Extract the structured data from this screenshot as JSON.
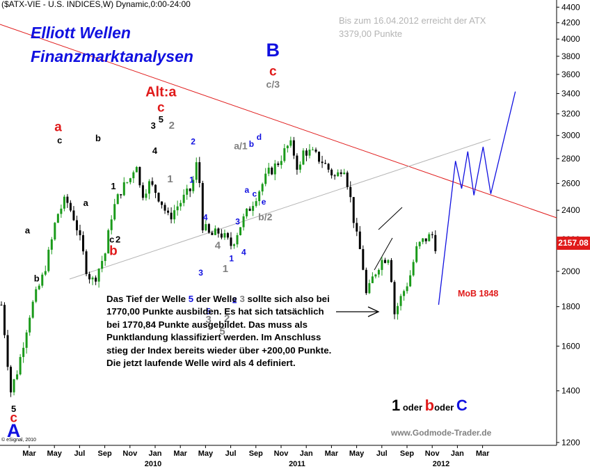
{
  "header": "($ATX-VIE - U.S. INDICES,W) Dynamic,0:00-24:00",
  "brand": {
    "line1": "Elliott Wellen",
    "line2": "Finanzmarktanalysen"
  },
  "note": {
    "line1": "Bis zum 16.04.2012 erreicht der ATX",
    "line2": "3379,00 Punkte"
  },
  "commentary": {
    "p1": "Das Tief der Welle ",
    "w5": "5",
    "p2": " der Welle ",
    "w3": "3",
    "p3": " sollte sich also bei 1770,00 Punkte ausbilden. Es hat sich tatsächlich bei 1770,84 Punkte ausgebildet. Das muss als Punktlandung klassifiziert werden. Im Anschluss stieg der Index bereits wieder über +200,00 Punkte. Die jetzt laufende Welle wird als 4 definiert."
  },
  "mob": "MoB 1848",
  "website": "www.Godmode-Trader.de",
  "credit": "© eSignal, 2010",
  "oder_line": {
    "n1": "1",
    "w1": " oder ",
    "n2": "b",
    "w2": "oder ",
    "n3": "C"
  },
  "colors": {
    "candle": "#1a9a1a",
    "red": "#e01a1a",
    "blue": "#1010e0",
    "grey": "#808080",
    "black": "#000000"
  },
  "chart_data": {
    "type": "candlestick",
    "title": "($ATX-VIE - U.S. INDICES,W) Dynamic,0:00-24:00",
    "last_price": "2157.08",
    "y_ticks": [
      "1200",
      "1400",
      "1600",
      "1800",
      "2000",
      "2200",
      "2400",
      "2600",
      "2800",
      "3000",
      "3200",
      "3400",
      "3600",
      "3800",
      "4000",
      "4200",
      "4400"
    ],
    "y_scale": "log",
    "ylim": [
      1180,
      4450
    ],
    "x_ticks": [
      "Mar",
      "May",
      "Jul",
      "Sep",
      "Nov",
      "Jan",
      "Mar",
      "May",
      "Jul",
      "Sep",
      "Nov",
      "Jan",
      "Mar",
      "May",
      "Jul",
      "Sep",
      "Nov",
      "Jan",
      "Mar"
    ],
    "x_year_labels": [
      "2010",
      "2011",
      "2012"
    ],
    "weekly_close_path": [
      {
        "t": 0,
        "c": 1810
      },
      {
        "t": 0.06,
        "c": 1395
      },
      {
        "t": 0.11,
        "c": 1500
      },
      {
        "t": 0.19,
        "c": 1780
      },
      {
        "t": 0.27,
        "c": 1970
      },
      {
        "t": 0.32,
        "c": 2150
      },
      {
        "t": 0.36,
        "c": 2360
      },
      {
        "t": 0.42,
        "c": 2480
      },
      {
        "t": 0.48,
        "c": 2330
      },
      {
        "t": 0.56,
        "c": 1990
      },
      {
        "t": 0.6,
        "c": 1940
      },
      {
        "t": 0.68,
        "c": 2120
      },
      {
        "t": 0.72,
        "c": 2380
      },
      {
        "t": 0.78,
        "c": 2550
      },
      {
        "t": 0.84,
        "c": 2640
      },
      {
        "t": 0.88,
        "c": 2780
      },
      {
        "t": 0.91,
        "c": 2500
      },
      {
        "t": 0.96,
        "c": 2600
      },
      {
        "t": 1.0,
        "c": 2550
      },
      {
        "t": 1.04,
        "c": 2470
      },
      {
        "t": 1.09,
        "c": 2340
      },
      {
        "t": 1.14,
        "c": 2420
      },
      {
        "t": 1.19,
        "c": 2490
      },
      {
        "t": 1.24,
        "c": 2560
      },
      {
        "t": 1.28,
        "c": 2800
      },
      {
        "t": 1.31,
        "c": 2300
      },
      {
        "t": 1.36,
        "c": 2220
      },
      {
        "t": 1.42,
        "c": 2250
      },
      {
        "t": 1.5,
        "c": 2160
      },
      {
        "t": 1.56,
        "c": 2300
      },
      {
        "t": 1.62,
        "c": 2420
      },
      {
        "t": 1.68,
        "c": 2550
      },
      {
        "t": 1.74,
        "c": 2680
      },
      {
        "t": 1.8,
        "c": 2760
      },
      {
        "t": 1.85,
        "c": 2870
      },
      {
        "t": 1.88,
        "c": 2930
      },
      {
        "t": 1.91,
        "c": 2830
      },
      {
        "t": 1.94,
        "c": 2680
      },
      {
        "t": 1.97,
        "c": 2870
      },
      {
        "t": 2.03,
        "c": 2840
      },
      {
        "t": 2.09,
        "c": 2780
      },
      {
        "t": 2.14,
        "c": 2700
      },
      {
        "t": 2.18,
        "c": 2640
      },
      {
        "t": 2.23,
        "c": 2760
      },
      {
        "t": 2.27,
        "c": 2520
      },
      {
        "t": 2.31,
        "c": 2240
      },
      {
        "t": 2.35,
        "c": 2080
      },
      {
        "t": 2.38,
        "c": 1850
      },
      {
        "t": 2.42,
        "c": 1960
      },
      {
        "t": 2.47,
        "c": 2060
      },
      {
        "t": 2.53,
        "c": 2100
      },
      {
        "t": 2.56,
        "c": 1760
      },
      {
        "t": 2.61,
        "c": 1860
      },
      {
        "t": 2.66,
        "c": 1960
      },
      {
        "t": 2.71,
        "c": 2150
      },
      {
        "t": 2.76,
        "c": 2200
      },
      {
        "t": 2.81,
        "c": 2230
      },
      {
        "t": 2.83,
        "c": 2157
      }
    ],
    "projection": [
      {
        "t": 2.85,
        "c": 1810
      },
      {
        "t": 2.96,
        "c": 2780
      },
      {
        "t": 3.0,
        "c": 2560
      },
      {
        "t": 3.04,
        "c": 2860
      },
      {
        "t": 3.08,
        "c": 2510
      },
      {
        "t": 3.14,
        "c": 2900
      },
      {
        "t": 3.19,
        "c": 2520
      },
      {
        "t": 3.35,
        "c": 3420
      }
    ],
    "wave_labels": [
      {
        "text": "5",
        "color": "black",
        "t": 0.08,
        "v": 1315
      },
      {
        "text": "c",
        "color": "red",
        "t": 0.08,
        "v": 1275
      },
      {
        "text": "A",
        "color": "blue",
        "t": 0.08,
        "v": 1220
      },
      {
        "text": "a",
        "color": "black",
        "t": 0.17,
        "v": 2240
      },
      {
        "text": "b",
        "color": "black",
        "t": 0.23,
        "v": 1940
      },
      {
        "text": "c",
        "color": "black",
        "t": 0.38,
        "v": 2930
      },
      {
        "text": "a",
        "color": "red",
        "t": 0.37,
        "v": 3040
      },
      {
        "text": "a",
        "color": "black",
        "t": 0.55,
        "v": 2430
      },
      {
        "text": "b",
        "color": "black",
        "t": 0.63,
        "v": 2950
      },
      {
        "text": "1",
        "color": "black",
        "t": 0.73,
        "v": 2555
      },
      {
        "text": "c",
        "color": "black",
        "t": 0.72,
        "v": 2180
      },
      {
        "text": "2",
        "color": "black",
        "t": 0.76,
        "v": 2180
      },
      {
        "text": "b",
        "color": "red",
        "t": 0.73,
        "v": 2100
      },
      {
        "text": "3",
        "color": "black",
        "t": 0.99,
        "v": 3060
      },
      {
        "text": "4",
        "color": "black",
        "t": 1.0,
        "v": 2840
      },
      {
        "text": "5",
        "color": "black",
        "t": 1.04,
        "v": 3120
      },
      {
        "text": "c",
        "color": "red",
        "t": 1.04,
        "v": 3220
      },
      {
        "text": "Alt:a",
        "color": "red",
        "t": 1.04,
        "v": 3370
      },
      {
        "text": "2",
        "color": "grey",
        "t": 1.11,
        "v": 3060
      },
      {
        "text": "1",
        "color": "grey",
        "t": 1.1,
        "v": 2610
      },
      {
        "text": "2",
        "color": "blue",
        "t": 1.25,
        "v": 2920
      },
      {
        "text": "1",
        "color": "blue",
        "t": 1.24,
        "v": 2605
      },
      {
        "text": "4",
        "color": "blue",
        "t": 1.33,
        "v": 2330
      },
      {
        "text": "3",
        "color": "blue",
        "t": 1.3,
        "v": 1975
      },
      {
        "text": "4",
        "color": "grey",
        "t": 1.41,
        "v": 2140
      },
      {
        "text": "5",
        "color": "blue",
        "t": 1.35,
        "v": 1760
      },
      {
        "text": "3",
        "color": "grey",
        "t": 1.35,
        "v": 1715
      },
      {
        "text": "1",
        "color": "grey",
        "t": 1.46,
        "v": 1995
      },
      {
        "text": "2",
        "color": "grey",
        "t": 1.47,
        "v": 1720
      },
      {
        "text": "5",
        "color": "grey",
        "t": 1.44,
        "v": 1655
      },
      {
        "text": "1",
        "color": "blue",
        "t": 1.5,
        "v": 2060
      },
      {
        "text": "2",
        "color": "blue",
        "t": 1.52,
        "v": 1820
      },
      {
        "text": "3",
        "color": "blue",
        "t": 1.54,
        "v": 2300
      },
      {
        "text": "4",
        "color": "blue",
        "t": 1.58,
        "v": 2100
      },
      {
        "text": "a/1",
        "color": "grey",
        "t": 1.56,
        "v": 2880
      },
      {
        "text": "a",
        "color": "blue",
        "t": 1.6,
        "v": 2530
      },
      {
        "text": "b",
        "color": "blue",
        "t": 1.63,
        "v": 2900
      },
      {
        "text": "c",
        "color": "blue",
        "t": 1.65,
        "v": 2500
      },
      {
        "text": "d",
        "color": "blue",
        "t": 1.68,
        "v": 2960
      },
      {
        "text": "e",
        "color": "blue",
        "t": 1.71,
        "v": 2440
      },
      {
        "text": "b/2",
        "color": "grey",
        "t": 1.72,
        "v": 2330
      },
      {
        "text": "c/3",
        "color": "grey",
        "t": 1.77,
        "v": 3460
      },
      {
        "text": "c",
        "color": "red",
        "t": 1.77,
        "v": 3590
      },
      {
        "text": "B",
        "color": "blue",
        "t": 1.77,
        "v": 3800
      }
    ]
  }
}
